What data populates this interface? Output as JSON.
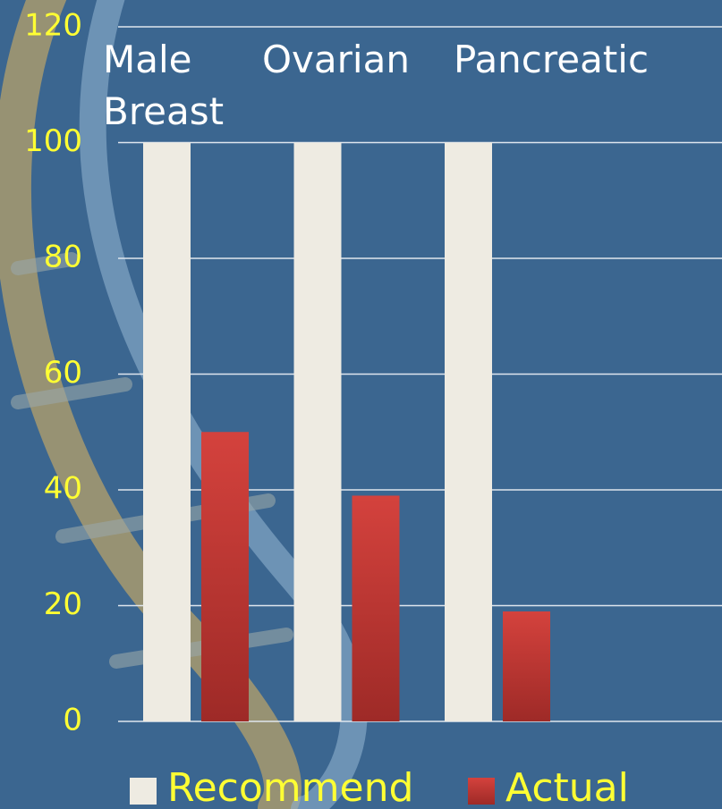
{
  "chart_data": {
    "type": "bar",
    "categories": [
      "Male Breast",
      "Ovarian",
      "Pancreatic"
    ],
    "series": [
      {
        "name": "Recommend",
        "color": "#eeebe2",
        "values": [
          100,
          100,
          100
        ]
      },
      {
        "name": "Actual",
        "color": "#c93a36",
        "values": [
          50,
          39,
          19
        ]
      }
    ],
    "ylim": [
      0,
      120
    ],
    "yticks": [
      0,
      20,
      40,
      60,
      80,
      100,
      120
    ],
    "grid": true,
    "legend": "bottom"
  }
}
